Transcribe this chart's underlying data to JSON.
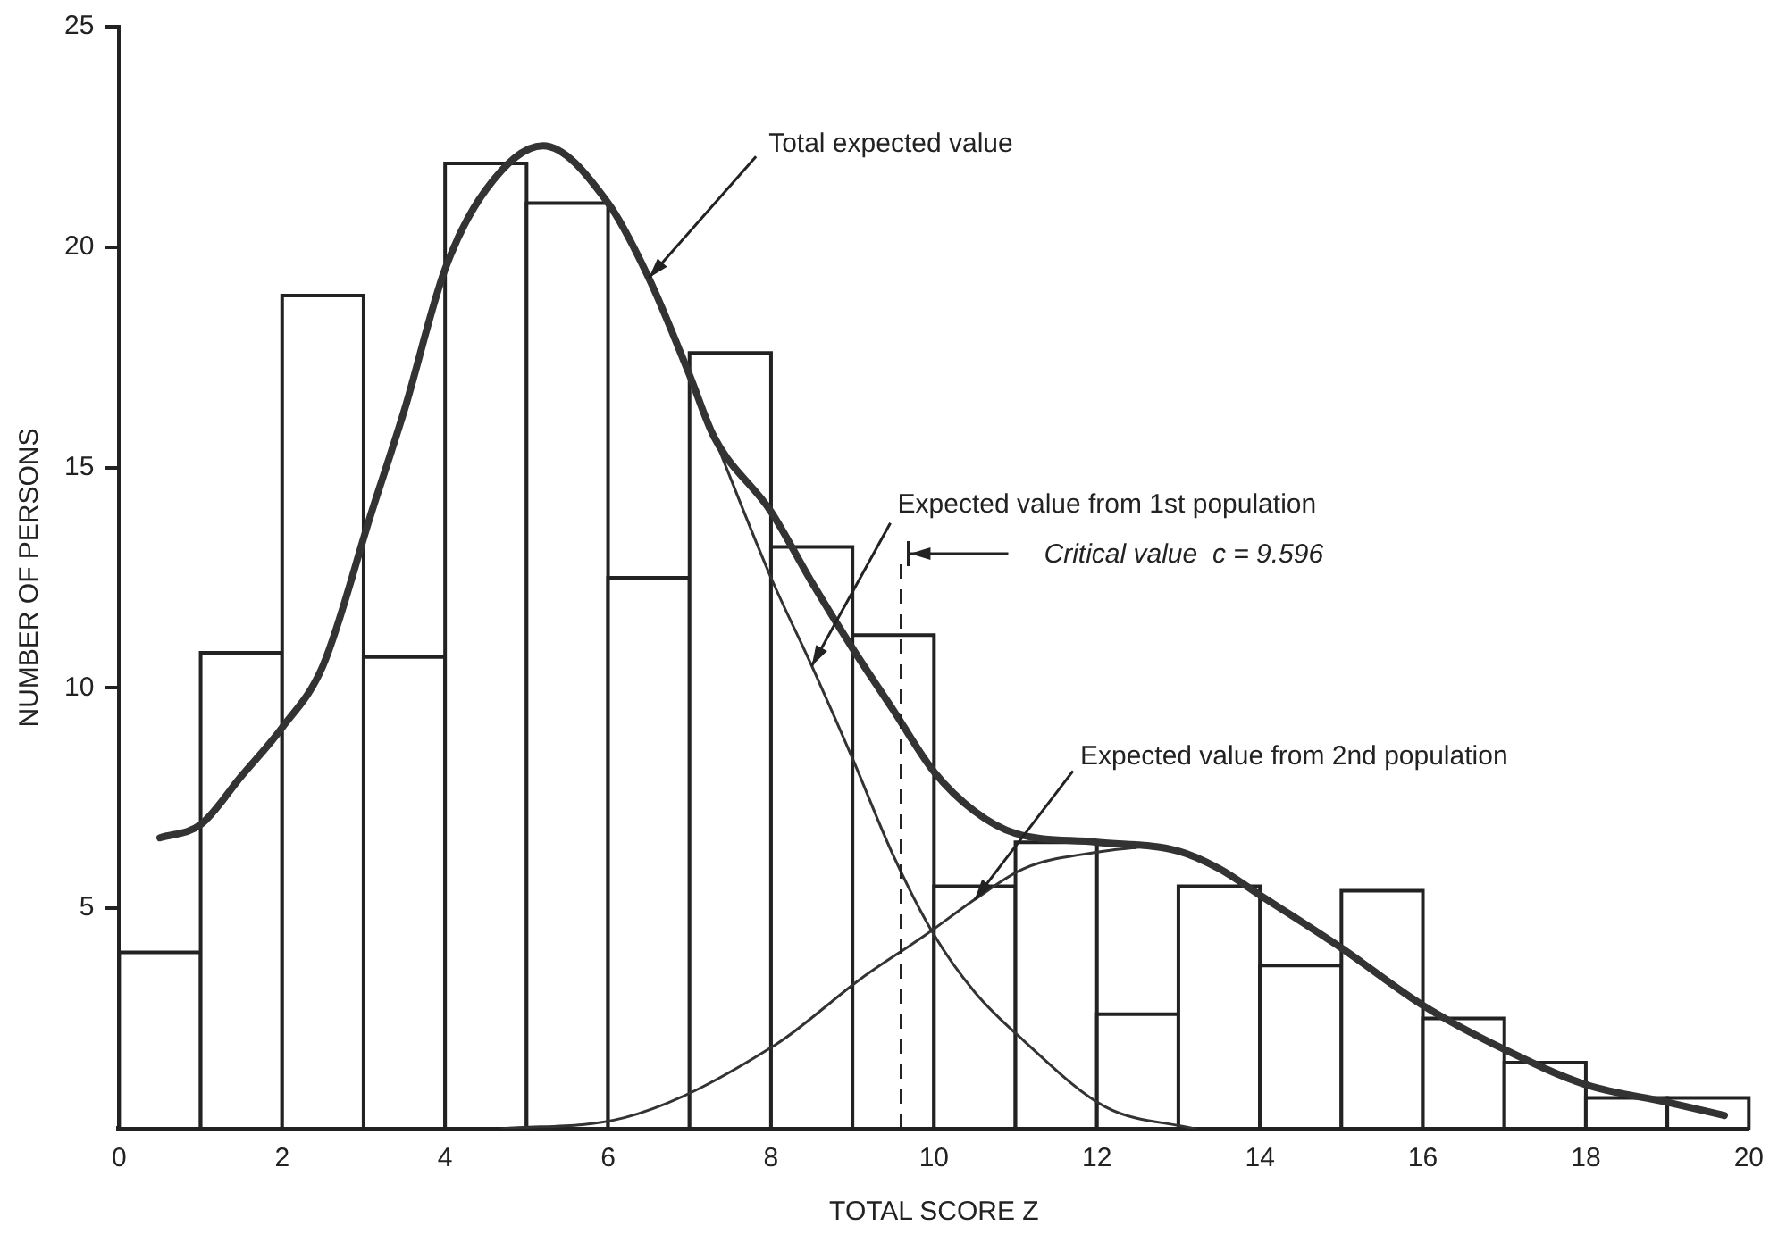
{
  "chart_data": {
    "type": "histogram",
    "xlabel": "TOTAL SCORE Z",
    "ylabel": "NUMBER OF PERSONS",
    "bins": [
      0,
      1,
      2,
      3,
      4,
      5,
      6,
      7,
      8,
      9,
      10,
      11,
      12,
      13,
      14,
      15,
      16,
      17,
      18,
      19,
      20
    ],
    "series": [
      {
        "type": "histogram",
        "color": "#222222",
        "values": [
          4.0,
          10.8,
          18.9,
          10.7,
          21.9,
          21.0,
          12.5,
          17.6,
          13.2,
          11.2,
          5.5,
          6.5,
          2.6,
          5.5,
          3.7,
          5.4,
          2.5,
          1.5,
          0.7,
          0.7
        ]
      },
      {
        "type": "line",
        "color": "#333333",
        "x": [
          0.5,
          1,
          1.5,
          2,
          2.5,
          3.1,
          3.5,
          4,
          4.5,
          5.2,
          6,
          6.5,
          7,
          7.3,
          8,
          8.5,
          9,
          9.5,
          10,
          10.5,
          11,
          12,
          13,
          13.5,
          14,
          15,
          16,
          17,
          18,
          19,
          19.7
        ],
        "values": [
          6.6,
          6.9,
          8.0,
          9.1,
          10.5,
          14.0,
          16.3,
          19.5,
          21.3,
          22.3,
          21.0,
          19.3,
          17.1,
          15.7,
          14.0,
          12.4,
          10.9,
          9.5,
          8.1,
          7.2,
          6.7,
          6.5,
          6.3,
          5.9,
          5.3,
          4.1,
          2.8,
          1.8,
          1.0,
          0.6,
          0.3
        ]
      },
      {
        "type": "line",
        "color": "#333333",
        "x": [
          7.3,
          8,
          8.5,
          9,
          9.5,
          10,
          10.5,
          11.1,
          12.1,
          13.2
        ],
        "values": [
          15.7,
          12.5,
          10.5,
          8.4,
          6.2,
          4.4,
          3.1,
          2.0,
          0.5,
          0
        ]
      },
      {
        "type": "line",
        "color": "#333333",
        "x": [
          4.7,
          6.2,
          8.05,
          9.1,
          9.9,
          10.5,
          11.1,
          12.1,
          12.6
        ],
        "values": [
          0,
          0.25,
          1.9,
          3.4,
          4.4,
          5.2,
          5.9,
          6.3,
          6.4
        ]
      }
    ],
    "xlim": [
      0,
      20
    ],
    "xticks": [
      0,
      2,
      4,
      6,
      8,
      10,
      12,
      14,
      16,
      18,
      20
    ],
    "ylim": [
      0,
      25
    ],
    "yticks": [
      5,
      10,
      15,
      20,
      25
    ],
    "ref_lines": [
      {
        "axis": "x",
        "value": 9.596,
        "label": "Critical value  c = 9.596",
        "color": "#222222",
        "line_style": "dashed"
      }
    ],
    "annotations": [
      {
        "text": "Total expected value",
        "x": 6.5,
        "y": 19.3
      },
      {
        "text": "Expected value from 1st population",
        "x": 8.5,
        "y": 10.5
      },
      {
        "text": "Expected value from 2nd population",
        "x": 10.5,
        "y": 5.2
      }
    ]
  }
}
